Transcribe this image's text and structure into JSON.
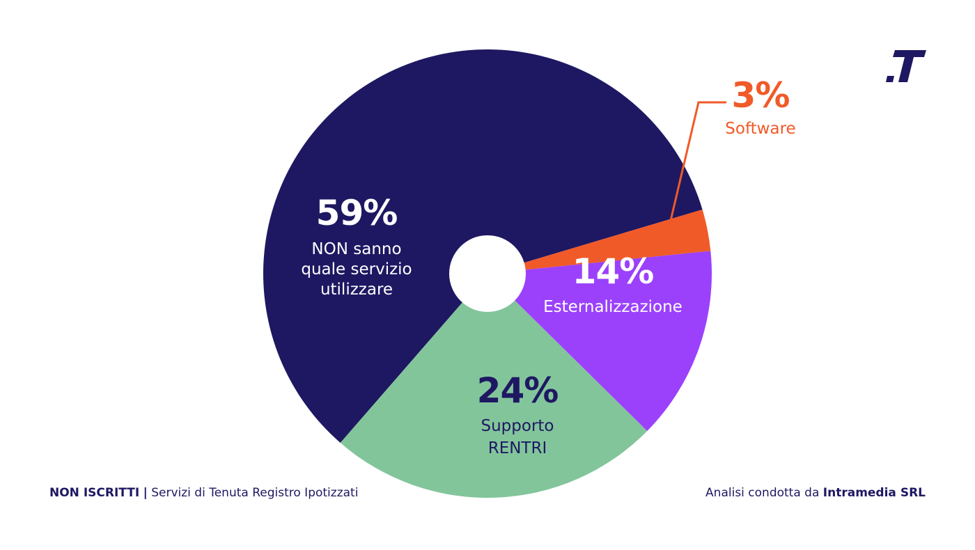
{
  "chart_data": {
    "type": "pie",
    "donut": true,
    "slices": [
      {
        "label_lines": [
          "NON sanno",
          "quale servizio",
          "utilizzare"
        ],
        "value": 59,
        "pct_text": "59%",
        "color": "#1e1862",
        "text_color": "#ffffff"
      },
      {
        "label_lines": [
          "Software"
        ],
        "value": 3,
        "pct_text": "3%",
        "color": "#f05a28",
        "text_color": "#f05a28",
        "outside": true
      },
      {
        "label_lines": [
          "Esternalizzazione"
        ],
        "value": 14,
        "pct_text": "14%",
        "color": "#9b41fb",
        "text_color": "#ffffff"
      },
      {
        "label_lines": [
          "Supporto",
          "RENTRI"
        ],
        "value": 24,
        "pct_text": "24%",
        "color": "#82c59b",
        "text_color": "#1e1862"
      }
    ]
  },
  "footer": {
    "left_bold": "NON ISCRITTI",
    "separator": "|",
    "left_text": "Servizi di Tenuta Registro Ipotizzati",
    "right_text": "Analisi condotta da ",
    "right_bold": "Intramedia SRL"
  },
  "colors": {
    "navy": "#1e1862",
    "orange": "#f05a28",
    "purple": "#9b41fb",
    "green": "#82c59b"
  },
  "icons": {
    "logo": "brand-t-logo"
  }
}
